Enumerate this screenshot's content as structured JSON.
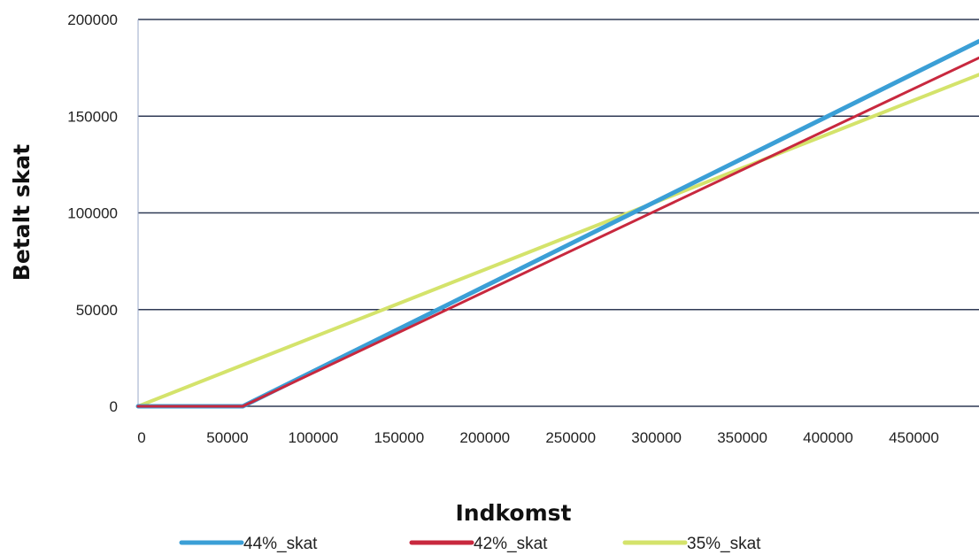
{
  "chart_data": {
    "type": "line",
    "title": "",
    "xlabel": "Indkomst",
    "ylabel": "Betalt skat",
    "xlim": [
      0,
      490000
    ],
    "ylim": [
      0,
      200000
    ],
    "x_ticks": [
      "0",
      "50000",
      "100000",
      "150000",
      "200000",
      "250000",
      "300000",
      "350000",
      "400000",
      "450000"
    ],
    "x_tick_values": [
      0,
      50000,
      100000,
      150000,
      200000,
      250000,
      300000,
      350000,
      400000,
      450000
    ],
    "y_ticks": [
      "0",
      "50000",
      "100000",
      "150000",
      "200000"
    ],
    "y_tick_values": [
      0,
      50000,
      100000,
      150000,
      200000
    ],
    "grid": "horizontal",
    "legend_position": "bottom",
    "series": [
      {
        "name": "44%_skat",
        "color": "#3b9fd6",
        "x": [
          0,
          61000,
          100000,
          200000,
          300000,
          400000,
          490000
        ],
        "y": [
          0,
          0,
          17160,
          61160,
          105160,
          149160,
          188760
        ]
      },
      {
        "name": "42%_skat",
        "color": "#c8283e",
        "x": [
          0,
          61000,
          100000,
          200000,
          300000,
          400000,
          490000
        ],
        "y": [
          0,
          0,
          16380,
          58380,
          100380,
          142380,
          180180
        ]
      },
      {
        "name": "35%_skat",
        "color": "#d4e36b",
        "x": [
          0,
          100000,
          200000,
          300000,
          400000,
          490000
        ],
        "y": [
          0,
          35000,
          70000,
          105000,
          140000,
          171500
        ]
      }
    ]
  }
}
